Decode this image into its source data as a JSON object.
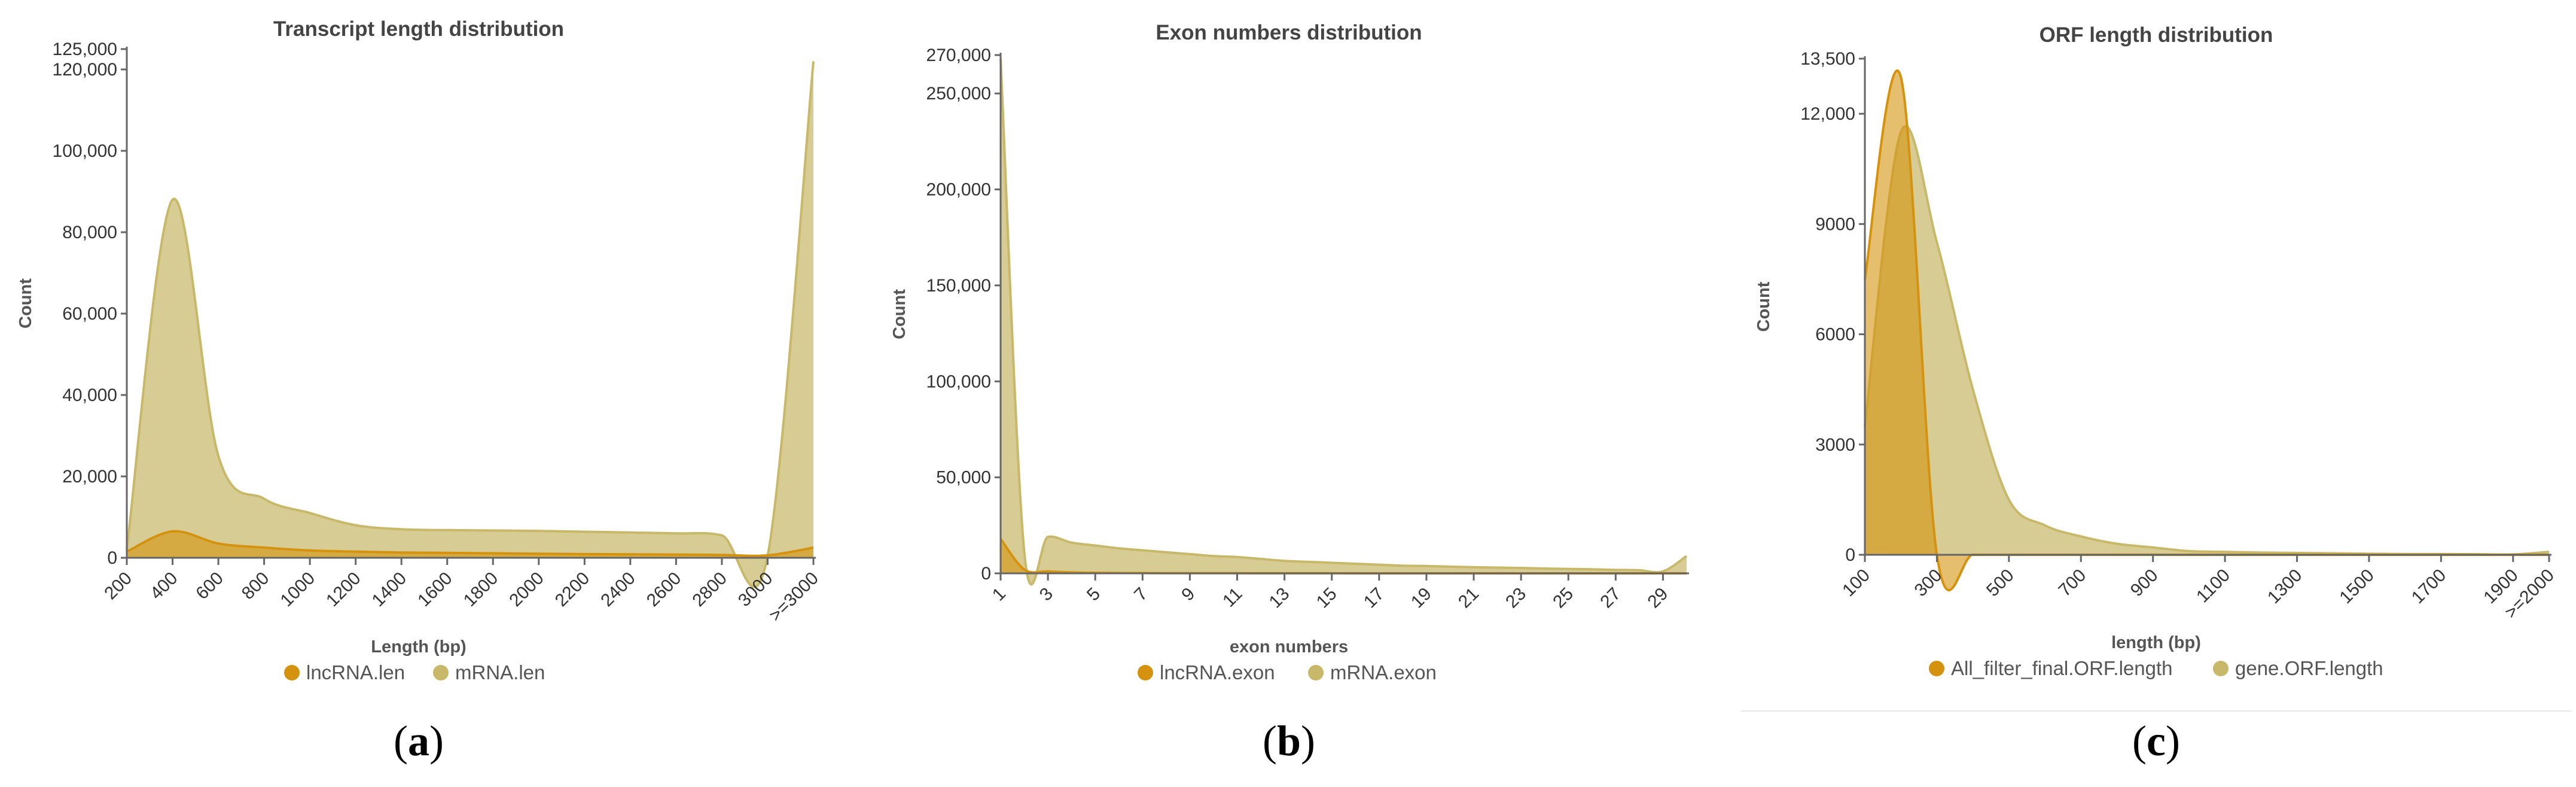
{
  "colors": {
    "lnc": "#D4920E",
    "mrna": "#C8B86A",
    "axis": "#666666",
    "separator": "#E8E8E8"
  },
  "chart_data": [
    {
      "type": "area",
      "title": "Transcript length distribution",
      "xlabel": "Length (bp)",
      "ylabel": "Count",
      "categories": [
        "200",
        "400",
        "600",
        "800",
        "1000",
        "1200",
        "1400",
        "1600",
        "1800",
        "2000",
        "2200",
        "2400",
        "2600",
        "2800",
        "3000",
        ">=3000"
      ],
      "ylim": [
        0,
        125000
      ],
      "yticks": [
        "0",
        "20,000",
        "40,000",
        "60,000",
        "80,000",
        "100,000",
        "120,000",
        "125,000"
      ],
      "letter": "a",
      "series": [
        {
          "name": "lncRNA.len",
          "values": [
            1500,
            6500,
            3500,
            2500,
            1800,
            1500,
            1300,
            1200,
            1100,
            1000,
            900,
            850,
            800,
            700,
            600,
            2500
          ]
        },
        {
          "name": "mRNA.len",
          "values": [
            2000,
            88000,
            25000,
            14500,
            11000,
            8000,
            7000,
            6800,
            6700,
            6600,
            6400,
            6200,
            6000,
            5500,
            500,
            122000
          ]
        }
      ]
    },
    {
      "type": "area",
      "title": "Exon numbers distribution",
      "xlabel": "exon numbers",
      "ylabel": "Count",
      "categories": [
        "1",
        "2",
        "3",
        "4",
        "5",
        "6",
        "7",
        "8",
        "9",
        "10",
        "11",
        "12",
        "13",
        "14",
        "15",
        "16",
        "17",
        "18",
        "19",
        "20",
        "21",
        "22",
        "23",
        "24",
        "25",
        "26",
        "27",
        "28",
        "29",
        "30"
      ],
      "tick_labels": [
        "1",
        "3",
        "5",
        "7",
        "9",
        "11",
        "13",
        "15",
        "17",
        "19",
        "21",
        "23",
        "25",
        "27",
        "29"
      ],
      "ylim": [
        0,
        270000
      ],
      "yticks": [
        "0",
        "50,000",
        "100,000",
        "150,000",
        "200,000",
        "250,000",
        "270,000"
      ],
      "letter": "b",
      "series": [
        {
          "name": "lncRNA.exon",
          "values": [
            18000,
            2000,
            1000,
            500,
            300,
            200,
            150,
            100,
            80,
            60,
            50,
            40,
            30,
            20,
            20,
            15,
            15,
            10,
            10,
            10,
            10,
            5,
            5,
            5,
            5,
            5,
            5,
            5,
            5,
            5
          ]
        },
        {
          "name": "mRNA.exon",
          "values": [
            268000,
            11000,
            19000,
            16000,
            14500,
            13000,
            12000,
            11000,
            10000,
            9000,
            8500,
            7500,
            6500,
            6000,
            5500,
            5000,
            4500,
            4000,
            3800,
            3500,
            3200,
            3000,
            2800,
            2500,
            2300,
            2100,
            1800,
            1600,
            1000,
            9000
          ]
        }
      ]
    },
    {
      "type": "area",
      "title": "ORF length distribution",
      "xlabel": "length (bp)",
      "ylabel": "Count",
      "categories": [
        "100",
        "200",
        "300",
        "400",
        "500",
        "600",
        "700",
        "800",
        "900",
        "1000",
        "1100",
        "1200",
        "1300",
        "1400",
        "1500",
        "1600",
        "1700",
        "1800",
        "1900",
        "2000"
      ],
      "tick_labels": [
        "100",
        "300",
        "500",
        "700",
        "900",
        "1100",
        "1300",
        "1500",
        "1700",
        "1900",
        ">=2000"
      ],
      "ylim": [
        0,
        13500
      ],
      "yticks": [
        "0",
        "3000",
        "6000",
        "9000",
        "12,000",
        "13,500"
      ],
      "letter": "c",
      "series": [
        {
          "name": "All_filter_final.ORF.length",
          "values": [
            7500,
            13000,
            0,
            0,
            0,
            0,
            0,
            0,
            0,
            0,
            0,
            0,
            0,
            0,
            0,
            0,
            0,
            0,
            0,
            0
          ]
        },
        {
          "name": "gene.ORF.length",
          "values": [
            3500,
            11500,
            8500,
            4500,
            1500,
            800,
            500,
            300,
            200,
            100,
            80,
            60,
            50,
            40,
            30,
            20,
            20,
            15,
            10,
            80
          ]
        }
      ]
    }
  ]
}
